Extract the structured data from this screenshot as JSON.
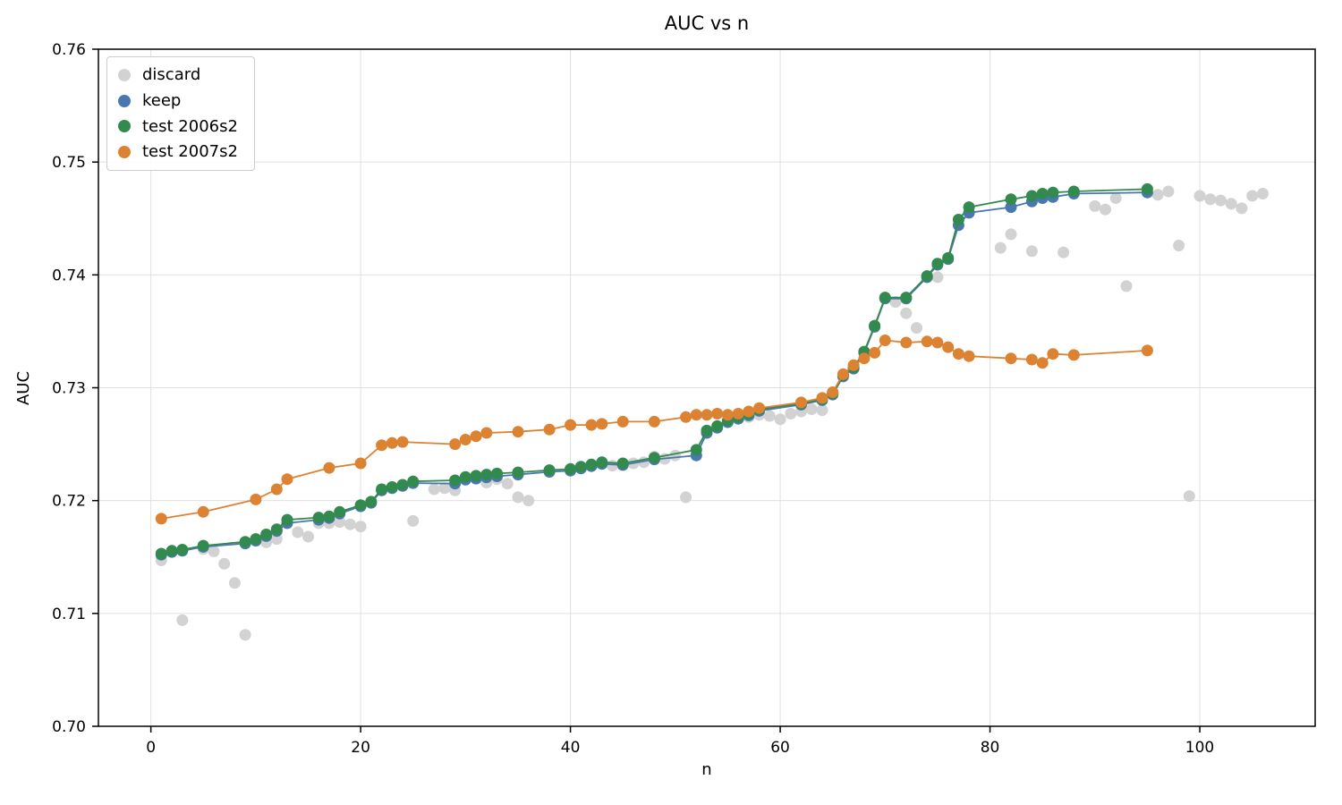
{
  "title": "AUC vs n",
  "chart_data": {
    "type": "line",
    "title": "AUC vs n",
    "xlabel": "n",
    "ylabel": "AUC",
    "xlim": [
      -5,
      111
    ],
    "ylim": [
      0.7,
      0.76
    ],
    "xticks": [
      0,
      20,
      40,
      60,
      80,
      100
    ],
    "yticks": [
      0.7,
      0.71,
      0.72,
      0.73,
      0.74,
      0.75,
      0.76
    ],
    "grid": true,
    "legend_position": "upper left",
    "grid_color": "#e0e0e0",
    "spine_color": "#000000",
    "series": [
      {
        "name": "discard",
        "style": "scatter",
        "color": "#d2d2d2",
        "points": [
          [
            1,
            0.7147
          ],
          [
            3,
            0.7094
          ],
          [
            5,
            0.7157
          ],
          [
            6,
            0.7155
          ],
          [
            7,
            0.7144
          ],
          [
            8,
            0.7127
          ],
          [
            9,
            0.7081
          ],
          [
            11,
            0.7163
          ],
          [
            12,
            0.7166
          ],
          [
            14,
            0.7172
          ],
          [
            15,
            0.7168
          ],
          [
            16,
            0.718
          ],
          [
            17,
            0.718
          ],
          [
            18,
            0.7181
          ],
          [
            19,
            0.7179
          ],
          [
            20,
            0.7177
          ],
          [
            25,
            0.7182
          ],
          [
            27,
            0.721
          ],
          [
            28,
            0.7211
          ],
          [
            29,
            0.7209
          ],
          [
            32,
            0.7216
          ],
          [
            33,
            0.7219
          ],
          [
            34,
            0.7215
          ],
          [
            35,
            0.7203
          ],
          [
            36,
            0.72
          ],
          [
            44,
            0.7231
          ],
          [
            45,
            0.7232
          ],
          [
            46,
            0.7233
          ],
          [
            47,
            0.7234
          ],
          [
            48,
            0.7239
          ],
          [
            49,
            0.7237
          ],
          [
            50,
            0.724
          ],
          [
            51,
            0.7203
          ],
          [
            53,
            0.7262
          ],
          [
            57,
            0.7274
          ],
          [
            58,
            0.7276
          ],
          [
            59,
            0.7275
          ],
          [
            60,
            0.7272
          ],
          [
            61,
            0.7277
          ],
          [
            62,
            0.7279
          ],
          [
            63,
            0.7281
          ],
          [
            64,
            0.728
          ],
          [
            71,
            0.7376
          ],
          [
            72,
            0.7366
          ],
          [
            73,
            0.7353
          ],
          [
            75,
            0.7398
          ],
          [
            81,
            0.7424
          ],
          [
            82,
            0.7436
          ],
          [
            84,
            0.7421
          ],
          [
            87,
            0.742
          ],
          [
            90,
            0.7461
          ],
          [
            91,
            0.7458
          ],
          [
            92,
            0.7468
          ],
          [
            93,
            0.739
          ],
          [
            96,
            0.7471
          ],
          [
            97,
            0.7474
          ],
          [
            98,
            0.7426
          ],
          [
            99,
            0.7204
          ],
          [
            100,
            0.747
          ],
          [
            101,
            0.7467
          ],
          [
            102,
            0.7466
          ],
          [
            103,
            0.7463
          ],
          [
            104,
            0.7459
          ],
          [
            105,
            0.747
          ],
          [
            106,
            0.7472
          ]
        ]
      },
      {
        "name": "keep",
        "style": "line_marker",
        "color": "#4878af",
        "points": [
          [
            1,
            0.7152
          ],
          [
            2,
            0.71545
          ],
          [
            3,
            0.71555
          ],
          [
            5,
            0.7159
          ],
          [
            9,
            0.7162
          ],
          [
            10,
            0.71645
          ],
          [
            11,
            0.71685
          ],
          [
            12,
            0.7173
          ],
          [
            13,
            0.718
          ],
          [
            16,
            0.7183
          ],
          [
            17,
            0.71845
          ],
          [
            18,
            0.71885
          ],
          [
            20,
            0.7195
          ],
          [
            21,
            0.7198
          ],
          [
            22,
            0.7209
          ],
          [
            23,
            0.7211
          ],
          [
            24,
            0.7213
          ],
          [
            25,
            0.72155
          ],
          [
            29,
            0.7215
          ],
          [
            30,
            0.72185
          ],
          [
            31,
            0.72195
          ],
          [
            32,
            0.72205
          ],
          [
            33,
            0.72215
          ],
          [
            35,
            0.7223
          ],
          [
            38,
            0.72255
          ],
          [
            40,
            0.72265
          ],
          [
            41,
            0.72285
          ],
          [
            42,
            0.72305
          ],
          [
            43,
            0.72325
          ],
          [
            45,
            0.72315
          ],
          [
            48,
            0.72365
          ],
          [
            52,
            0.724
          ],
          [
            53,
            0.726
          ],
          [
            54,
            0.72645
          ],
          [
            55,
            0.72695
          ],
          [
            56,
            0.72725
          ],
          [
            57,
            0.72755
          ],
          [
            58,
            0.72795
          ],
          [
            62,
            0.7285
          ],
          [
            64,
            0.7289
          ],
          [
            65,
            0.7294
          ],
          [
            66,
            0.731
          ],
          [
            67,
            0.7317
          ],
          [
            68,
            0.7331
          ],
          [
            69,
            0.7354
          ],
          [
            70,
            0.7379
          ],
          [
            72,
            0.7379
          ],
          [
            74,
            0.7398
          ],
          [
            75,
            0.7409
          ],
          [
            76,
            0.7414
          ],
          [
            77,
            0.7444
          ],
          [
            78,
            0.7455
          ],
          [
            82,
            0.746
          ],
          [
            84,
            0.7465
          ],
          [
            85,
            0.7468
          ],
          [
            86,
            0.7469
          ],
          [
            88,
            0.7472
          ],
          [
            95,
            0.7473
          ]
        ]
      },
      {
        "name": "test 2006s2",
        "style": "line_marker",
        "color": "#338a4e",
        "points": [
          [
            1,
            0.7153
          ],
          [
            2,
            0.71555
          ],
          [
            3,
            0.71565
          ],
          [
            5,
            0.716
          ],
          [
            9,
            0.71635
          ],
          [
            10,
            0.7166
          ],
          [
            11,
            0.717
          ],
          [
            12,
            0.71745
          ],
          [
            13,
            0.7183
          ],
          [
            16,
            0.7185
          ],
          [
            17,
            0.7186
          ],
          [
            18,
            0.719
          ],
          [
            20,
            0.7196
          ],
          [
            21,
            0.7199
          ],
          [
            22,
            0.721
          ],
          [
            23,
            0.7212
          ],
          [
            24,
            0.7214
          ],
          [
            25,
            0.7217
          ],
          [
            29,
            0.7218
          ],
          [
            30,
            0.7221
          ],
          [
            31,
            0.7222
          ],
          [
            32,
            0.7223
          ],
          [
            33,
            0.7224
          ],
          [
            35,
            0.7225
          ],
          [
            38,
            0.7227
          ],
          [
            40,
            0.7228
          ],
          [
            41,
            0.723
          ],
          [
            42,
            0.7232
          ],
          [
            43,
            0.7234
          ],
          [
            45,
            0.7233
          ],
          [
            48,
            0.7238
          ],
          [
            52,
            0.7245
          ],
          [
            53,
            0.7262
          ],
          [
            54,
            0.7266
          ],
          [
            55,
            0.7271
          ],
          [
            56,
            0.7274
          ],
          [
            57,
            0.7277
          ],
          [
            58,
            0.7281
          ],
          [
            62,
            0.7286
          ],
          [
            64,
            0.729
          ],
          [
            65,
            0.7295
          ],
          [
            66,
            0.7311
          ],
          [
            67,
            0.7318
          ],
          [
            68,
            0.7332
          ],
          [
            69,
            0.7355
          ],
          [
            70,
            0.738
          ],
          [
            72,
            0.738
          ],
          [
            74,
            0.7399
          ],
          [
            75,
            0.741
          ],
          [
            76,
            0.7415
          ],
          [
            77,
            0.7449
          ],
          [
            78,
            0.746
          ],
          [
            82,
            0.7467
          ],
          [
            84,
            0.747
          ],
          [
            85,
            0.7472
          ],
          [
            86,
            0.7473
          ],
          [
            88,
            0.7474
          ],
          [
            95,
            0.7476
          ]
        ]
      },
      {
        "name": "test 2007s2",
        "style": "line_marker",
        "color": "#dc8333",
        "points": [
          [
            1,
            0.7184
          ],
          [
            5,
            0.719
          ],
          [
            10,
            0.7201
          ],
          [
            12,
            0.721
          ],
          [
            13,
            0.7219
          ],
          [
            17,
            0.7229
          ],
          [
            20,
            0.7233
          ],
          [
            22,
            0.7249
          ],
          [
            23,
            0.7251
          ],
          [
            24,
            0.7252
          ],
          [
            29,
            0.725
          ],
          [
            30,
            0.7254
          ],
          [
            31,
            0.7257
          ],
          [
            32,
            0.726
          ],
          [
            35,
            0.7261
          ],
          [
            38,
            0.7263
          ],
          [
            40,
            0.7267
          ],
          [
            42,
            0.7267
          ],
          [
            43,
            0.7268
          ],
          [
            45,
            0.727
          ],
          [
            48,
            0.727
          ],
          [
            51,
            0.7274
          ],
          [
            52,
            0.7276
          ],
          [
            53,
            0.7276
          ],
          [
            54,
            0.7277
          ],
          [
            55,
            0.7276
          ],
          [
            56,
            0.7277
          ],
          [
            57,
            0.7279
          ],
          [
            58,
            0.7282
          ],
          [
            62,
            0.7287
          ],
          [
            64,
            0.7291
          ],
          [
            65,
            0.7296
          ],
          [
            66,
            0.7312
          ],
          [
            67,
            0.732
          ],
          [
            68,
            0.7326
          ],
          [
            69,
            0.7331
          ],
          [
            70,
            0.7342
          ],
          [
            72,
            0.734
          ],
          [
            74,
            0.7341
          ],
          [
            75,
            0.734
          ],
          [
            76,
            0.7336
          ],
          [
            77,
            0.733
          ],
          [
            78,
            0.7328
          ],
          [
            82,
            0.7326
          ],
          [
            84,
            0.7325
          ],
          [
            85,
            0.7322
          ],
          [
            86,
            0.733
          ],
          [
            88,
            0.7329
          ],
          [
            95,
            0.7333
          ]
        ]
      }
    ]
  }
}
